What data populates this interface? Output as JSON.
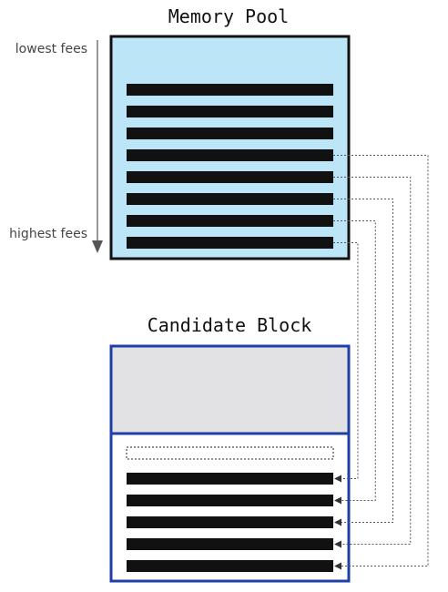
{
  "memory_pool": {
    "title": "Memory Pool",
    "fill_color": "#BDE5F8",
    "border_color": "#111111",
    "transaction_count": 8
  },
  "fee_axis": {
    "top_label": "lowest fees",
    "bottom_label": "highest fees"
  },
  "candidate_block": {
    "title": "Candidate Block",
    "border_color": "#1F3FA6",
    "header_fill": "#E2E2E4",
    "empty_slot_count": 1,
    "transaction_count": 5
  },
  "connections": [
    {
      "from_pool_tx": 8,
      "to_block_tx": 1
    },
    {
      "from_pool_tx": 7,
      "to_block_tx": 2
    },
    {
      "from_pool_tx": 6,
      "to_block_tx": 3
    },
    {
      "from_pool_tx": 5,
      "to_block_tx": 4
    },
    {
      "from_pool_tx": 4,
      "to_block_tx": 5
    }
  ]
}
